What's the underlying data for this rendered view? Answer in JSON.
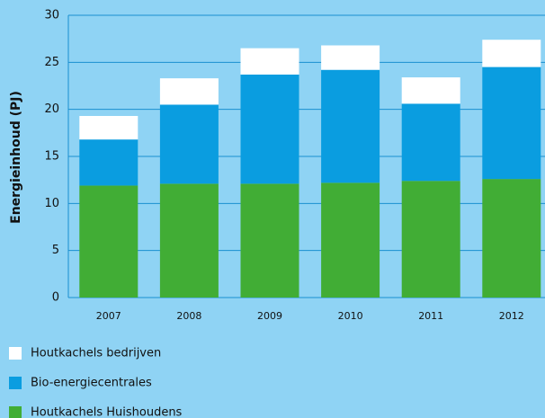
{
  "chart_data": {
    "type": "stacked_bar",
    "y_label": "Energieinhoud (PJ)",
    "categories": [
      "2007",
      "2008",
      "2009",
      "2010",
      "2011",
      "2012"
    ],
    "series": [
      {
        "name": "Houtkachels Huishoudens",
        "color": "#41ad35",
        "values": [
          11.9,
          12.1,
          12.1,
          12.2,
          12.4,
          12.6
        ]
      },
      {
        "name": "Bio-energiecentrales",
        "color": "#0a9de0",
        "values": [
          4.9,
          8.4,
          11.6,
          12.0,
          8.2,
          11.9
        ]
      },
      {
        "name": "Houtkachels bedrijven",
        "color": "#ffffff",
        "values": [
          2.5,
          2.8,
          2.8,
          2.6,
          2.8,
          2.9
        ]
      }
    ],
    "ylim": [
      0,
      30
    ],
    "yticks": [
      0,
      5,
      10,
      15,
      20,
      25,
      30
    ],
    "grid": true
  }
}
